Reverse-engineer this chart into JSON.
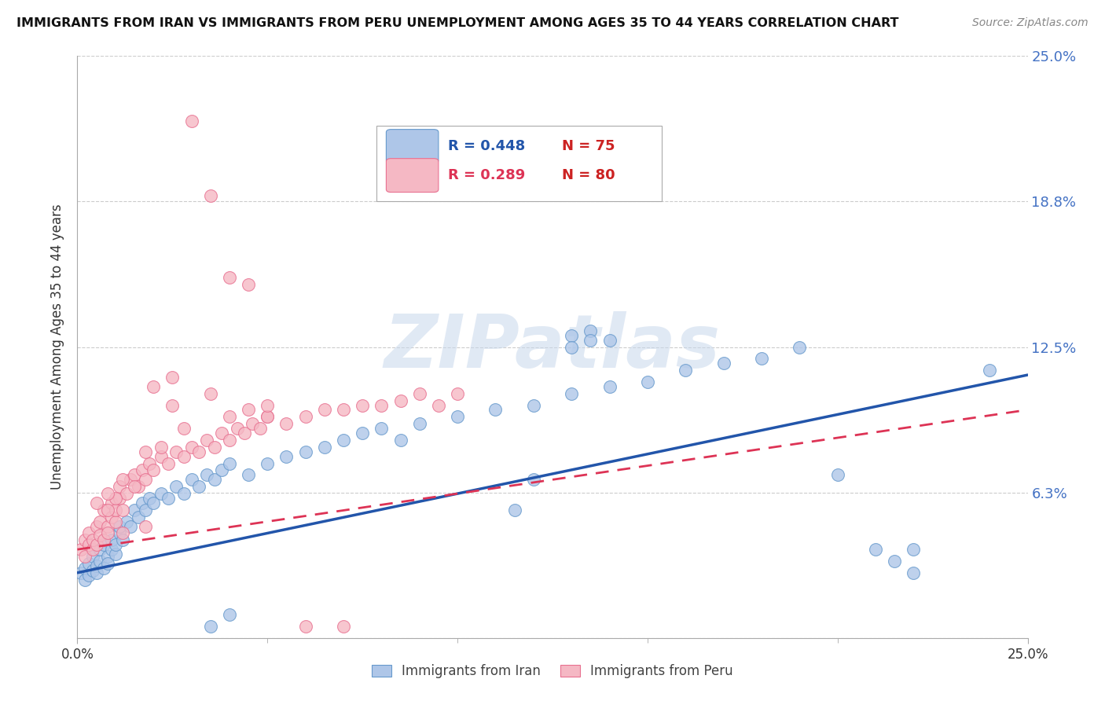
{
  "title": "IMMIGRANTS FROM IRAN VS IMMIGRANTS FROM PERU UNEMPLOYMENT AMONG AGES 35 TO 44 YEARS CORRELATION CHART",
  "source": "Source: ZipAtlas.com",
  "ylabel": "Unemployment Among Ages 35 to 44 years",
  "xmin": 0.0,
  "xmax": 0.25,
  "ymin": 0.0,
  "ymax": 0.25,
  "ytick_vals": [
    0.0,
    0.0625,
    0.125,
    0.1875,
    0.25
  ],
  "ytick_labels_right": [
    "",
    "6.3%",
    "12.5%",
    "18.8%",
    "25.0%"
  ],
  "iran_color": "#aec6e8",
  "iran_edge_color": "#6699cc",
  "peru_color": "#f5b8c4",
  "peru_edge_color": "#e87090",
  "iran_R": 0.448,
  "iran_N": 75,
  "peru_R": 0.289,
  "peru_N": 80,
  "iran_line_color": "#2255aa",
  "peru_line_color": "#dd3355",
  "watermark_text": "ZIPatlas",
  "watermark_color": "#c8d8ec",
  "background_color": "#ffffff",
  "title_color": "#111111",
  "source_color": "#888888",
  "label_color": "#4472c4",
  "grid_color": "#cccccc",
  "iran_line_x": [
    0.0,
    0.25
  ],
  "iran_line_y": [
    0.028,
    0.113
  ],
  "peru_line_x": [
    0.0,
    0.25
  ],
  "peru_line_y": [
    0.038,
    0.098
  ],
  "iran_x": [
    0.001,
    0.002,
    0.002,
    0.003,
    0.003,
    0.004,
    0.004,
    0.005,
    0.005,
    0.006,
    0.006,
    0.007,
    0.007,
    0.008,
    0.008,
    0.009,
    0.009,
    0.01,
    0.01,
    0.011,
    0.011,
    0.012,
    0.013,
    0.014,
    0.015,
    0.016,
    0.017,
    0.018,
    0.019,
    0.02,
    0.022,
    0.024,
    0.026,
    0.028,
    0.03,
    0.032,
    0.034,
    0.036,
    0.038,
    0.04,
    0.045,
    0.05,
    0.055,
    0.06,
    0.065,
    0.07,
    0.075,
    0.08,
    0.085,
    0.09,
    0.1,
    0.11,
    0.12,
    0.13,
    0.14,
    0.15,
    0.16,
    0.17,
    0.18,
    0.19,
    0.2,
    0.21,
    0.22,
    0.13,
    0.14,
    0.12,
    0.115,
    0.22,
    0.215,
    0.24,
    0.035,
    0.04,
    0.135,
    0.135,
    0.13
  ],
  "iran_y": [
    0.028,
    0.03,
    0.025,
    0.032,
    0.027,
    0.029,
    0.035,
    0.031,
    0.028,
    0.033,
    0.038,
    0.03,
    0.04,
    0.035,
    0.032,
    0.038,
    0.042,
    0.036,
    0.04,
    0.045,
    0.048,
    0.042,
    0.05,
    0.048,
    0.055,
    0.052,
    0.058,
    0.055,
    0.06,
    0.058,
    0.062,
    0.06,
    0.065,
    0.062,
    0.068,
    0.065,
    0.07,
    0.068,
    0.072,
    0.075,
    0.07,
    0.075,
    0.078,
    0.08,
    0.082,
    0.085,
    0.088,
    0.09,
    0.085,
    0.092,
    0.095,
    0.098,
    0.1,
    0.105,
    0.108,
    0.11,
    0.115,
    0.118,
    0.12,
    0.125,
    0.07,
    0.038,
    0.028,
    0.13,
    0.128,
    0.068,
    0.055,
    0.038,
    0.033,
    0.115,
    0.005,
    0.01,
    0.132,
    0.128,
    0.125
  ],
  "peru_x": [
    0.001,
    0.002,
    0.002,
    0.003,
    0.003,
    0.004,
    0.004,
    0.005,
    0.005,
    0.006,
    0.006,
    0.007,
    0.007,
    0.008,
    0.008,
    0.009,
    0.009,
    0.01,
    0.01,
    0.011,
    0.011,
    0.012,
    0.013,
    0.014,
    0.015,
    0.016,
    0.017,
    0.018,
    0.019,
    0.02,
    0.022,
    0.024,
    0.026,
    0.028,
    0.03,
    0.032,
    0.034,
    0.036,
    0.038,
    0.04,
    0.042,
    0.044,
    0.046,
    0.048,
    0.05,
    0.055,
    0.06,
    0.065,
    0.07,
    0.075,
    0.08,
    0.085,
    0.09,
    0.095,
    0.1,
    0.03,
    0.035,
    0.04,
    0.045,
    0.05,
    0.025,
    0.035,
    0.02,
    0.025,
    0.018,
    0.022,
    0.028,
    0.01,
    0.015,
    0.008,
    0.06,
    0.07,
    0.005,
    0.008,
    0.012,
    0.04,
    0.045,
    0.05,
    0.012,
    0.018
  ],
  "peru_y": [
    0.038,
    0.042,
    0.035,
    0.04,
    0.045,
    0.038,
    0.042,
    0.048,
    0.04,
    0.044,
    0.05,
    0.042,
    0.055,
    0.048,
    0.045,
    0.052,
    0.058,
    0.05,
    0.055,
    0.06,
    0.065,
    0.055,
    0.062,
    0.068,
    0.07,
    0.065,
    0.072,
    0.068,
    0.075,
    0.072,
    0.078,
    0.075,
    0.08,
    0.078,
    0.082,
    0.08,
    0.085,
    0.082,
    0.088,
    0.085,
    0.09,
    0.088,
    0.092,
    0.09,
    0.095,
    0.092,
    0.095,
    0.098,
    0.098,
    0.1,
    0.1,
    0.102,
    0.105,
    0.1,
    0.105,
    0.222,
    0.19,
    0.155,
    0.152,
    0.095,
    0.1,
    0.105,
    0.108,
    0.112,
    0.08,
    0.082,
    0.09,
    0.06,
    0.065,
    0.055,
    0.005,
    0.005,
    0.058,
    0.062,
    0.068,
    0.095,
    0.098,
    0.1,
    0.045,
    0.048
  ]
}
